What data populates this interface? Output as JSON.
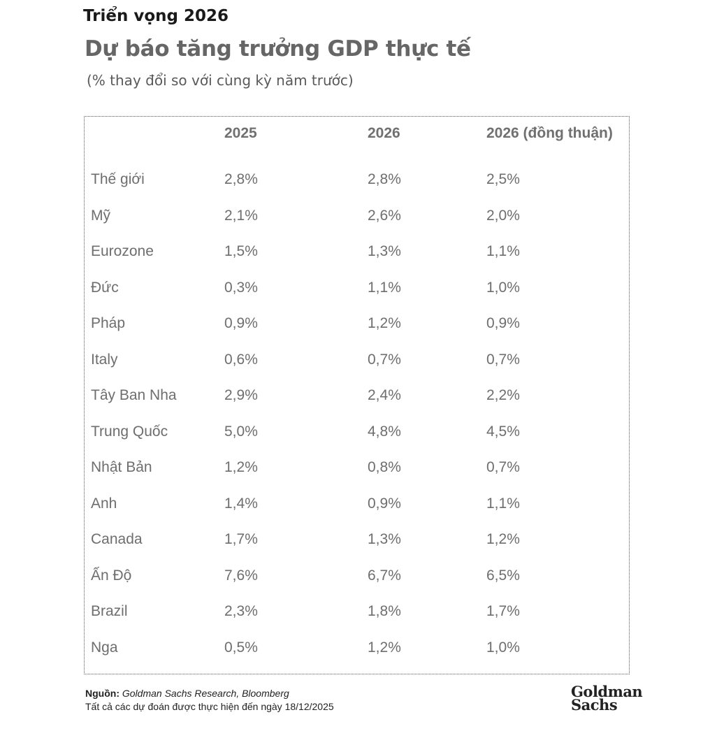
{
  "header": {
    "kicker": "Triển vọng 2026",
    "title": "Dự báo tăng trưởng GDP thực tế",
    "subtitle": "(% thay đổi so với cùng kỳ năm trước)"
  },
  "table": {
    "columns": [
      "2025",
      "2026",
      "2026 (đồng thuận)"
    ],
    "rows": [
      {
        "country": "Thế giới",
        "v2025": "2,8%",
        "v2026": "2,8%",
        "consensus": "2,5%"
      },
      {
        "country": "Mỹ",
        "v2025": "2,1%",
        "v2026": "2,6%",
        "consensus": "2,0%"
      },
      {
        "country": "Eurozone",
        "v2025": "1,5%",
        "v2026": "1,3%",
        "consensus": "1,1%"
      },
      {
        "country": "Đức",
        "v2025": "0,3%",
        "v2026": "1,1%",
        "consensus": "1,0%"
      },
      {
        "country": "Pháp",
        "v2025": "0,9%",
        "v2026": "1,2%",
        "consensus": "0,9%"
      },
      {
        "country": "Italy",
        "v2025": "0,6%",
        "v2026": "0,7%",
        "consensus": "0,7%"
      },
      {
        "country": "Tây Ban Nha",
        "v2025": "2,9%",
        "v2026": "2,4%",
        "consensus": "2,2%"
      },
      {
        "country": "Trung Quốc",
        "v2025": "5,0%",
        "v2026": "4,8%",
        "consensus": "4,5%"
      },
      {
        "country": "Nhật Bản",
        "v2025": "1,2%",
        "v2026": "0,8%",
        "consensus": "0,7%"
      },
      {
        "country": "Anh",
        "v2025": "1,4%",
        "v2026": "0,9%",
        "consensus": "1,1%"
      },
      {
        "country": "Canada",
        "v2025": "1,7%",
        "v2026": "1,3%",
        "consensus": "1,2%"
      },
      {
        "country": "Ấn Độ",
        "v2025": "7,6%",
        "v2026": "6,7%",
        "consensus": "6,5%"
      },
      {
        "country": "Brazil",
        "v2025": "2,3%",
        "v2026": "1,8%",
        "consensus": "1,7%"
      },
      {
        "country": "Nga",
        "v2025": "0,5%",
        "v2026": "1,2%",
        "consensus": "1,0%"
      }
    ]
  },
  "footer": {
    "source_label": "Nguồn:",
    "source_text": "Goldman Sachs Research, Bloomberg",
    "note": "Tất cả các dự đoán được thực hiện đến ngày 18/12/2025"
  },
  "logo": {
    "line1": "Goldman",
    "line2": "Sachs"
  }
}
